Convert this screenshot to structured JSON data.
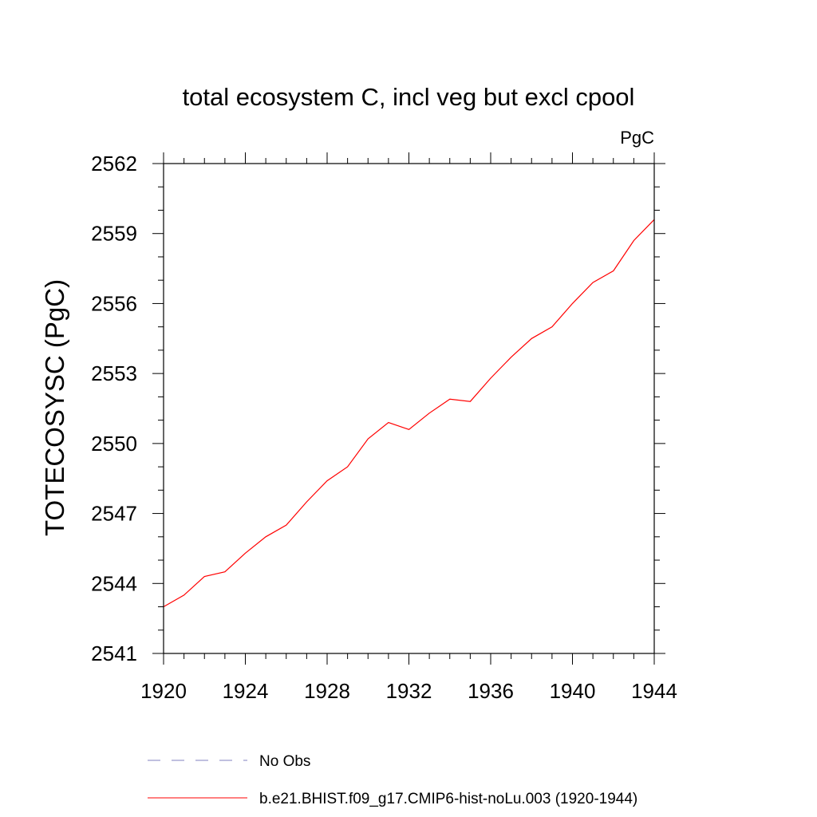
{
  "chart_data": {
    "type": "line",
    "title": "total ecosystem C, incl veg but excl cpool",
    "units_label": "PgC",
    "ylabel": "TOTECOSYSC  (PgC)",
    "xlabel": "",
    "xlim": [
      1920,
      1944
    ],
    "ylim": [
      2541,
      2562
    ],
    "x_ticks": [
      1920,
      1924,
      1928,
      1932,
      1936,
      1940,
      1944
    ],
    "x_tick_labels": [
      "1920",
      "1924",
      "1928",
      "1932",
      "1936",
      "1940",
      "1944"
    ],
    "y_ticks": [
      2541,
      2544,
      2547,
      2550,
      2553,
      2556,
      2559,
      2562
    ],
    "y_tick_labels": [
      "2541",
      "2544",
      "2547",
      "2550",
      "2553",
      "2556",
      "2559",
      "2562"
    ],
    "grid": false,
    "legend_position": "bottom",
    "series": [
      {
        "name": "b.e21.BHIST.f09_g17.CMIP6-hist-noLu.003 (1920-1944)",
        "color": "#ff0000",
        "dash": "solid",
        "x": [
          1920,
          1921,
          1922,
          1923,
          1924,
          1925,
          1926,
          1927,
          1928,
          1929,
          1930,
          1931,
          1932,
          1933,
          1934,
          1935,
          1936,
          1937,
          1938,
          1939,
          1940,
          1941,
          1942,
          1943,
          1944
        ],
        "y": [
          2543.0,
          2543.5,
          2544.3,
          2544.5,
          2545.3,
          2546.0,
          2546.5,
          2547.5,
          2548.4,
          2549.0,
          2550.2,
          2550.9,
          2550.6,
          2551.3,
          2551.9,
          2551.8,
          2552.8,
          2553.7,
          2554.5,
          2555.0,
          2556.0,
          2556.9,
          2557.4,
          2558.7,
          2559.6
        ]
      }
    ],
    "legend": [
      {
        "label": "No Obs",
        "color": "#8080c0",
        "dash": "dashed"
      },
      {
        "label": "b.e21.BHIST.f09_g17.CMIP6-hist-noLu.003 (1920-1944)",
        "color": "#ff0000",
        "dash": "solid"
      }
    ]
  }
}
